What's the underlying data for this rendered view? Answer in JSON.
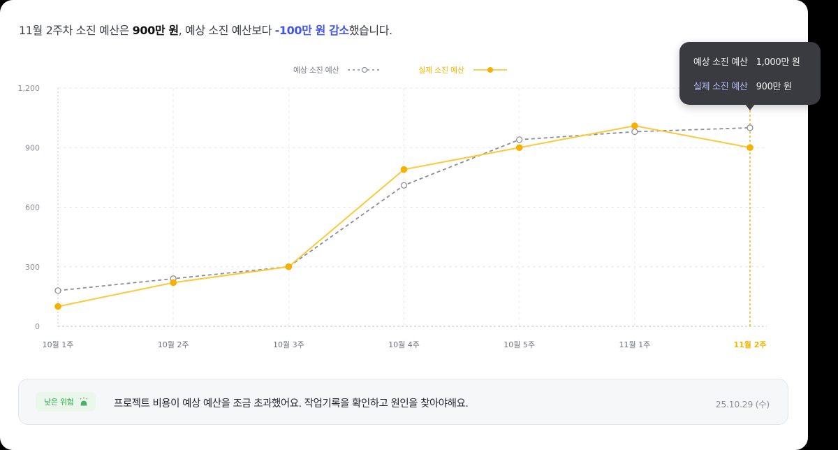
{
  "headline": {
    "part1": "11월 2주차 소진 예산은 ",
    "amount": "900만 원",
    "part2": ", 예상 소진 예산보다 ",
    "delta": "-100만 원 감소",
    "part3": "했습니다."
  },
  "legend": {
    "expected_label": "예상 소진 예산",
    "actual_label": "실제 소진 예산"
  },
  "tooltip": {
    "expected_label": "예상 소진 예산",
    "expected_value": "1,000만 원",
    "actual_label": "실제 소진 예산",
    "actual_value": "900만 원"
  },
  "alert": {
    "badge_label": "낮은 위험",
    "badge_icon": "alarm-bell-icon",
    "message": "프로젝트 비용이 예상 예산을 조금 초과했어요. 작업기록을 확인하고 원인을 찾아야해요.",
    "date": "25.10.29 (수)"
  },
  "colors": {
    "expected": "#8a8e97",
    "actual": "#fbc93d",
    "actual_marker": "#f5b000",
    "accent_blue": "#4355e8",
    "badge_green": "#2fa84f",
    "tooltip_bg": "#3a3b40"
  },
  "chart_data": {
    "type": "line",
    "title": "",
    "xlabel": "",
    "ylabel": "",
    "categories": [
      "10월 1주",
      "10월 2주",
      "10월 3주",
      "10월 4주",
      "10월 5주",
      "11월 1주",
      "11월 2주"
    ],
    "series": [
      {
        "name": "예상 소진 예산",
        "style": "dashed, hollow circle markers",
        "values": [
          180,
          240,
          300,
          710,
          940,
          980,
          1000
        ]
      },
      {
        "name": "실제 소진 예산",
        "style": "solid, filled circle markers",
        "values": [
          100,
          220,
          300,
          790,
          900,
          1010,
          900
        ]
      }
    ],
    "yticks": [
      "0",
      "300",
      "600",
      "900",
      "1,200"
    ],
    "ylim": [
      0,
      1200
    ],
    "unit": "만 원",
    "grid": true,
    "legend_position": "top-center",
    "highlighted_category": "11월 2주"
  }
}
